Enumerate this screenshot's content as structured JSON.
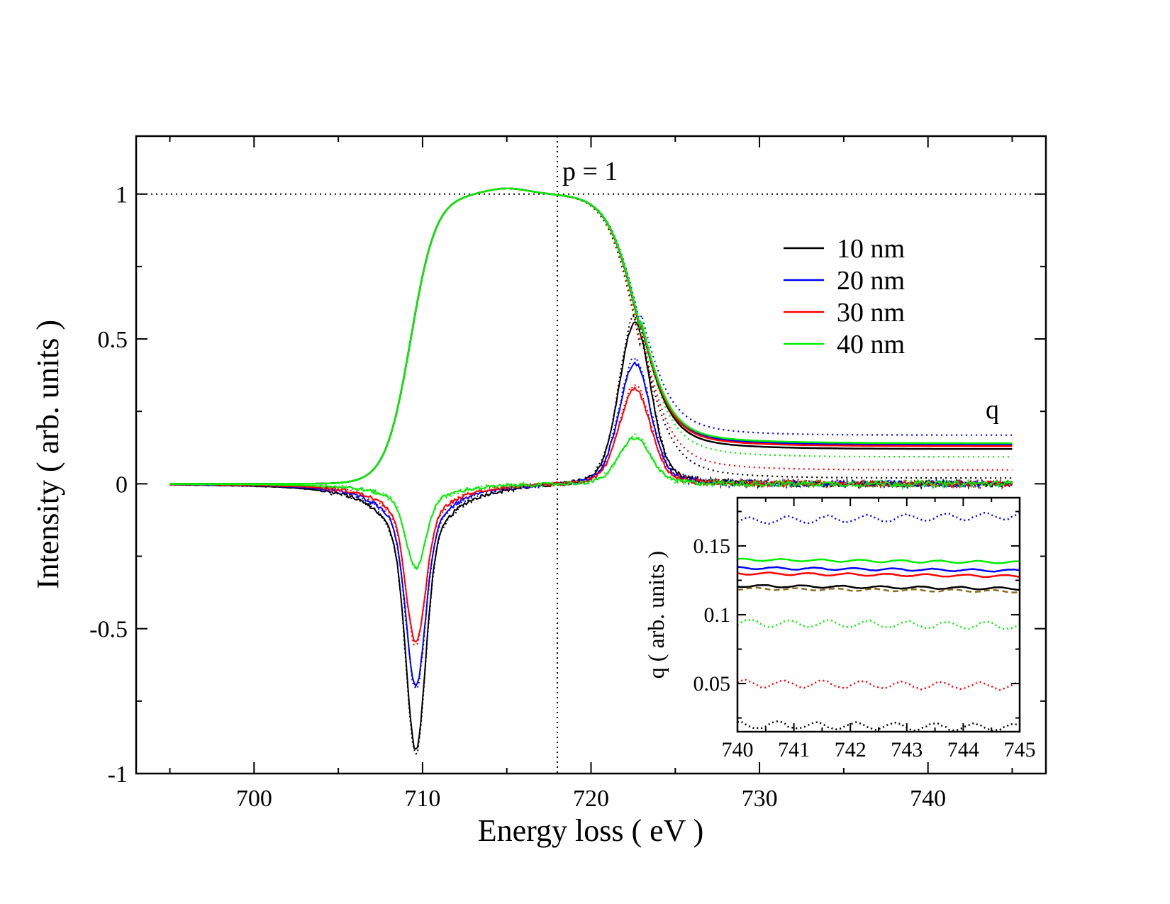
{
  "chart_data": {
    "type": "line",
    "main": {
      "xlabel": "Energy loss ( eV )",
      "ylabel": "Intensity ( arb. units )",
      "xlim": [
        693,
        747
      ],
      "ylim": [
        -1,
        1.2
      ],
      "xticks": [
        700,
        710,
        720,
        730,
        740
      ],
      "xtick_labels": [
        "700",
        "710",
        "720",
        "730",
        "740"
      ],
      "yticks": [
        -1,
        -0.5,
        0,
        0.5,
        1
      ],
      "ytick_labels": [
        "-1",
        "-0.5",
        "0",
        "0.5",
        "1"
      ],
      "reference_lines": {
        "horizontal_y": 1,
        "vertical_x": 718
      },
      "annotations": {
        "p_label": "p = 1",
        "q_label": "q"
      },
      "x_range": [
        695,
        745
      ],
      "legend": {
        "position": "top-right",
        "entries": [
          {
            "label": "10 nm",
            "color": "#000000"
          },
          {
            "label": "20 nm",
            "color": "#0000ff"
          },
          {
            "label": "30 nm",
            "color": "#ff0000"
          },
          {
            "label": "40 nm",
            "color": "#00ee00"
          }
        ]
      },
      "series": [
        {
          "name": "10 nm",
          "color": "#000000",
          "dip_min": -0.92,
          "peak_max": 0.56,
          "q_tail": 0.12,
          "q_dotted_tail": 0.02
        },
        {
          "name": "20 nm",
          "color": "#0000ff",
          "dip_min": -0.7,
          "peak_max": 0.42,
          "q_tail": 0.135,
          "q_dotted_tail": 0.168
        },
        {
          "name": "30 nm",
          "color": "#ff0000",
          "dip_min": -0.55,
          "peak_max": 0.33,
          "q_tail": 0.13,
          "q_dotted_tail": 0.048
        },
        {
          "name": "40 nm",
          "color": "#00ee00",
          "dip_min": -0.29,
          "peak_max": 0.16,
          "q_tail": 0.14,
          "q_dotted_tail": 0.093
        }
      ]
    },
    "inset": {
      "ylabel": "q ( arb. units )",
      "xlim": [
        740,
        745
      ],
      "ylim": [
        0.015,
        0.185
      ],
      "xticks": [
        740,
        741,
        742,
        743,
        744,
        745
      ],
      "xtick_labels": [
        "740",
        "741",
        "742",
        "743",
        "744",
        "745"
      ],
      "yticks": [
        0.05,
        0.1,
        0.15
      ],
      "ytick_labels": [
        "0.05",
        "0.1",
        "0.15"
      ],
      "lines": [
        {
          "name": "20 nm dotted",
          "color": "#0000ff",
          "style": "dotted",
          "y": 0.168
        },
        {
          "name": "40 nm solid",
          "color": "#00ee00",
          "style": "solid",
          "y": 0.14
        },
        {
          "name": "20 nm solid",
          "color": "#0000ff",
          "style": "solid",
          "y": 0.134
        },
        {
          "name": "30 nm solid",
          "color": "#ff0000",
          "style": "solid",
          "y": 0.13
        },
        {
          "name": "10 nm solid",
          "color": "#000000",
          "style": "solid",
          "y": 0.121
        },
        {
          "name": "reference dashed",
          "color": "#8a6d1f",
          "style": "dashed",
          "y": 0.119
        },
        {
          "name": "40 nm dotted",
          "color": "#00ee00",
          "style": "dotted",
          "y": 0.094
        },
        {
          "name": "30 nm dotted",
          "color": "#ff0000",
          "style": "dotted",
          "y": 0.05
        },
        {
          "name": "10 nm dotted",
          "color": "#000000",
          "style": "dotted",
          "y": 0.02
        }
      ]
    }
  }
}
